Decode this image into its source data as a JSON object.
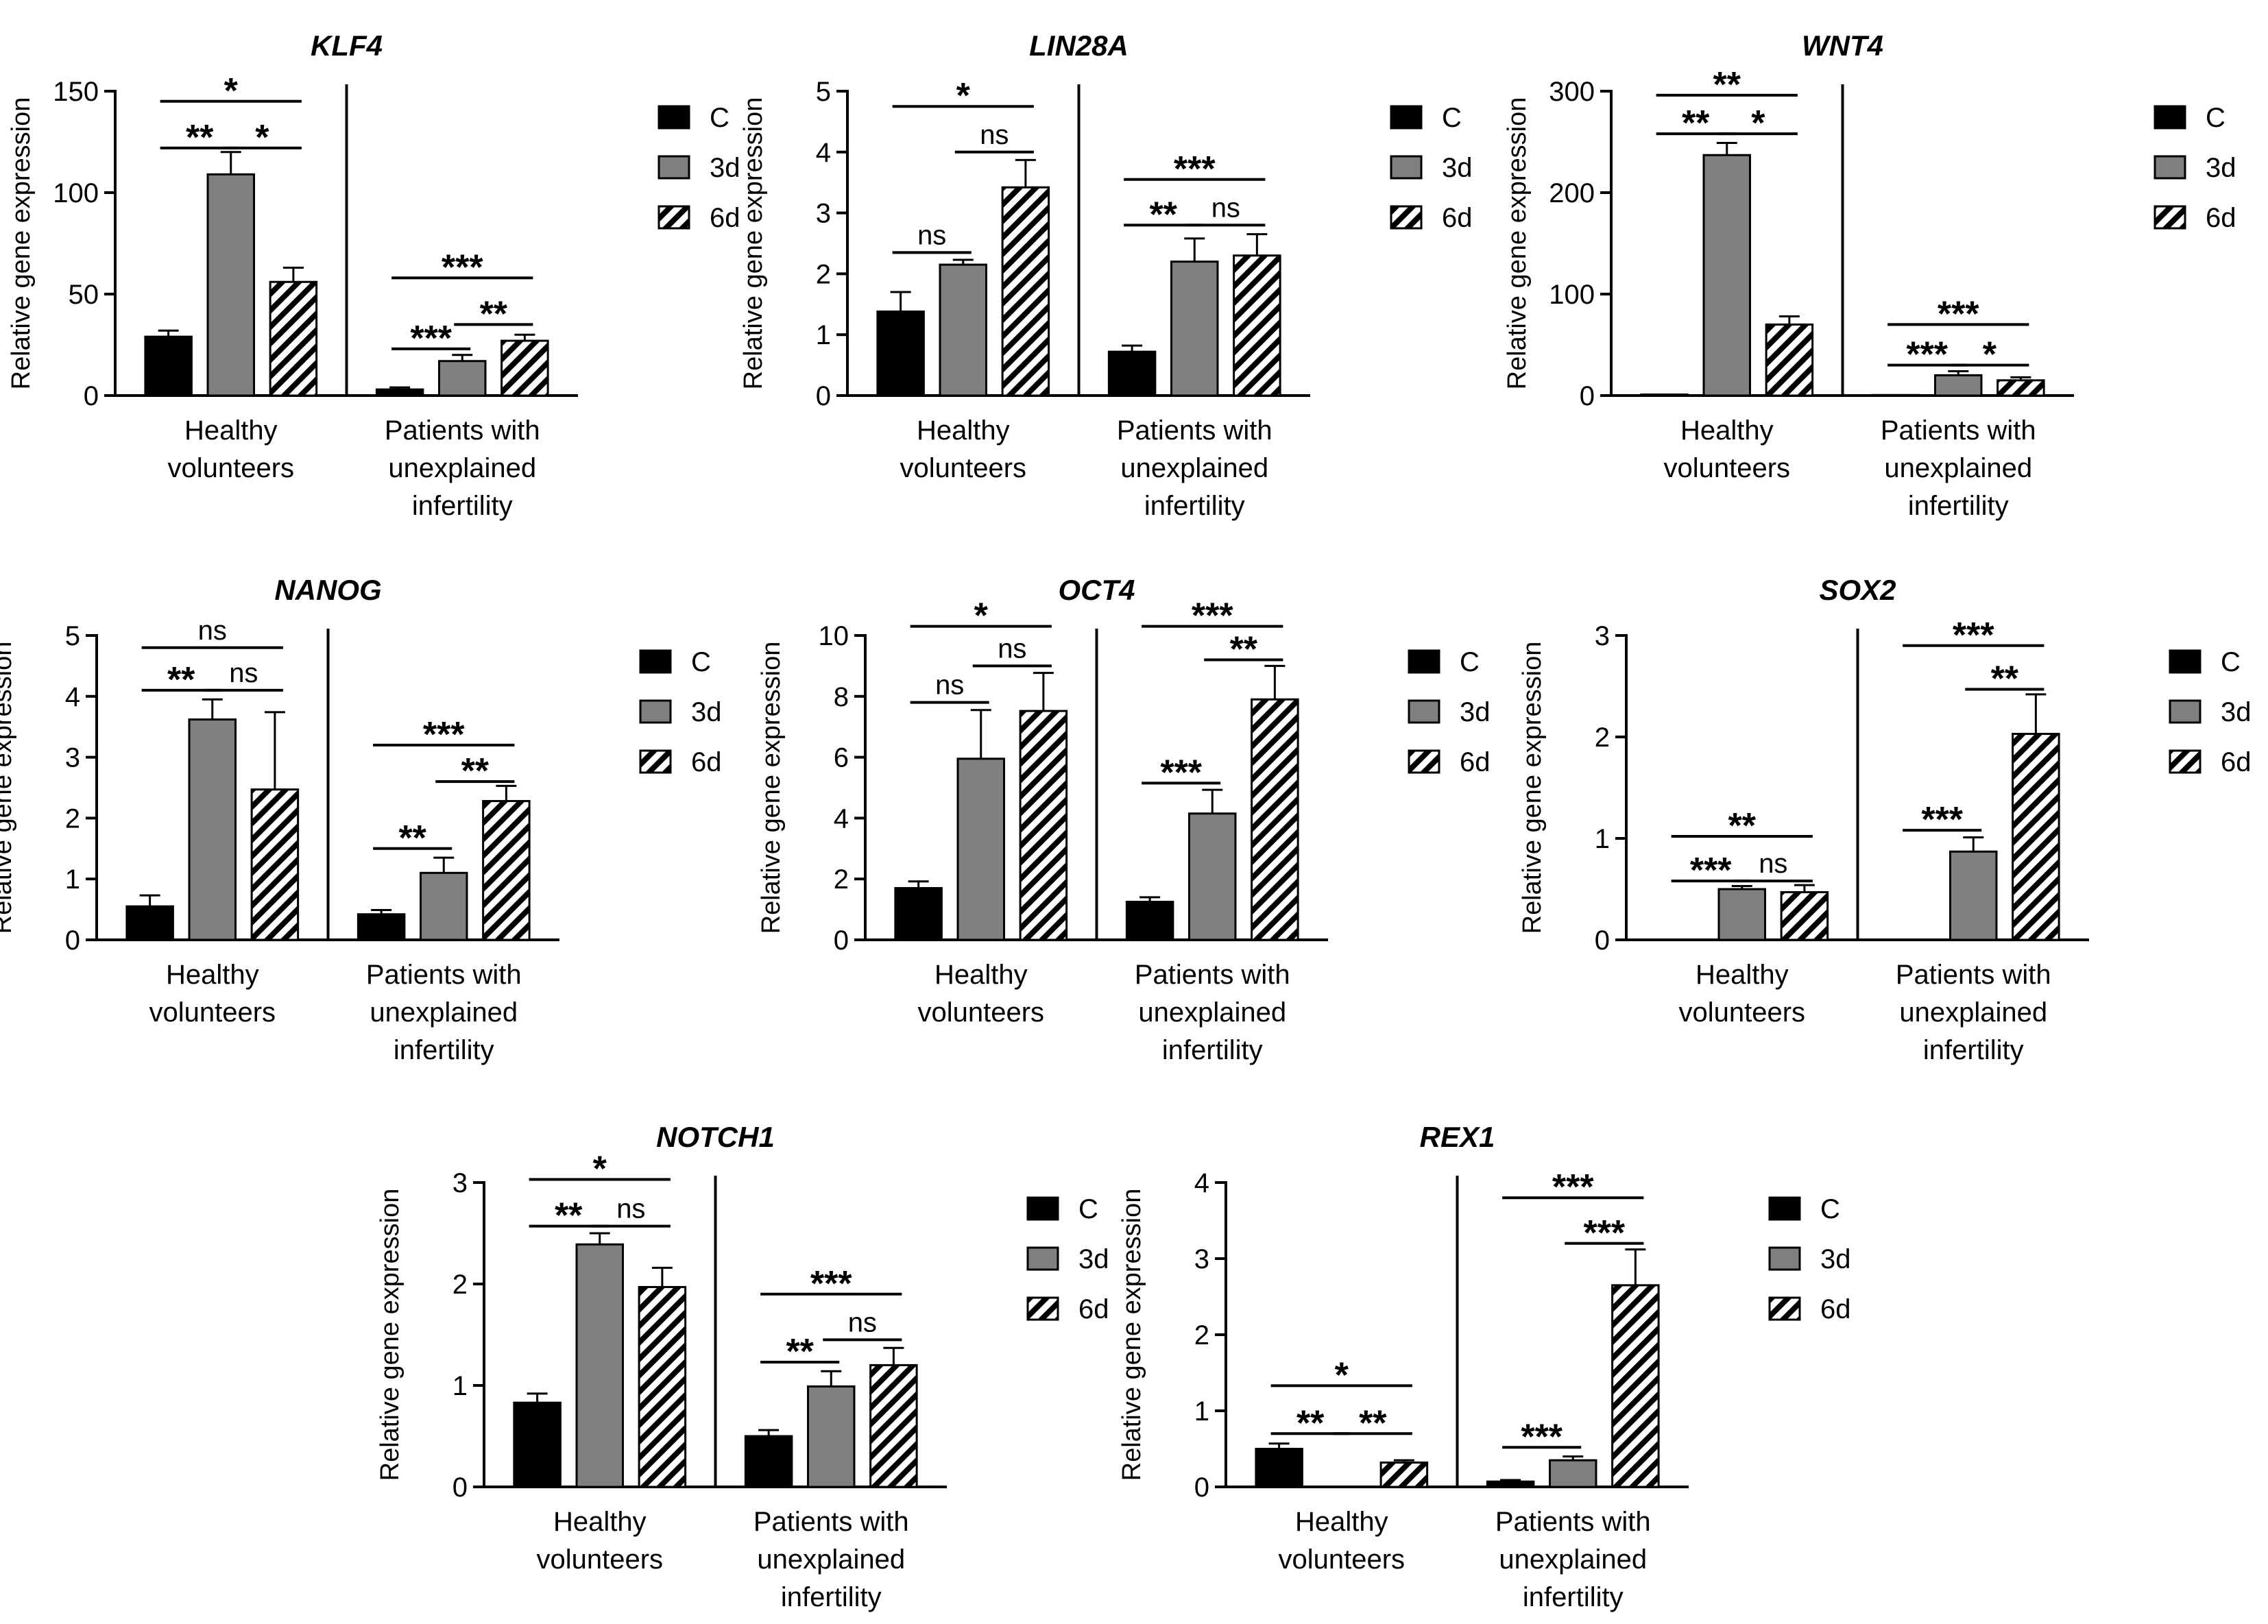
{
  "figure": {
    "ylabel": "Relative gene expression",
    "groups": [
      "Healthy volunteers",
      "Patients with unexplained infertility"
    ],
    "group_label_lines": [
      [
        "Healthy",
        "volunteers"
      ],
      [
        "Patients with",
        "unexplained",
        "infertility"
      ]
    ],
    "legend": [
      {
        "key": "C",
        "label": "C",
        "fill": "#000000"
      },
      {
        "key": "3d",
        "label": "3d",
        "fill": "#808080"
      },
      {
        "key": "6d",
        "label": "6d",
        "fill": "hatch"
      }
    ],
    "colors": {
      "control": "#000000",
      "day3": "#808080",
      "day6_hatch": "#000000",
      "axis": "#000000"
    }
  },
  "chart_data": [
    {
      "type": "bar",
      "title": "KLF4",
      "ylabel": "Relative gene expression",
      "categories": [
        "Healthy volunteers",
        "Patients with unexplained infertility"
      ],
      "ylim": [
        0,
        150
      ],
      "yticks": [
        0,
        50,
        100,
        150
      ],
      "series": [
        {
          "name": "C",
          "values": [
            29,
            3
          ],
          "errors": [
            3,
            1
          ]
        },
        {
          "name": "3d",
          "values": [
            109,
            17
          ],
          "errors": [
            11,
            3
          ]
        },
        {
          "name": "6d",
          "values": [
            56,
            27
          ],
          "errors": [
            7,
            3
          ]
        }
      ],
      "annotations": [
        {
          "group": 0,
          "from": 0,
          "to": 2,
          "y": 145,
          "label": "*"
        },
        {
          "group": 0,
          "from": 0,
          "to": 1,
          "y": 122,
          "label": "**"
        },
        {
          "group": 0,
          "from": 1,
          "to": 2,
          "y": 122,
          "label": "*"
        },
        {
          "group": 1,
          "from": 0,
          "to": 2,
          "y": 58,
          "label": "***"
        },
        {
          "group": 1,
          "from": 0,
          "to": 1,
          "y": 23,
          "label": "***"
        },
        {
          "group": 1,
          "from": 1,
          "to": 2,
          "y": 35,
          "label": "**"
        }
      ]
    },
    {
      "type": "bar",
      "title": "LIN28A",
      "ylabel": "Relative gene expression",
      "categories": [
        "Healthy volunteers",
        "Patients with unexplained infertility"
      ],
      "ylim": [
        0,
        5
      ],
      "yticks": [
        0,
        1,
        2,
        3,
        4,
        5
      ],
      "series": [
        {
          "name": "C",
          "values": [
            1.38,
            0.72
          ],
          "errors": [
            0.32,
            0.1
          ]
        },
        {
          "name": "3d",
          "values": [
            2.15,
            2.2
          ],
          "errors": [
            0.08,
            0.38
          ]
        },
        {
          "name": "6d",
          "values": [
            3.42,
            2.3
          ],
          "errors": [
            0.45,
            0.35
          ]
        }
      ],
      "annotations": [
        {
          "group": 0,
          "from": 0,
          "to": 2,
          "y": 4.75,
          "label": "*"
        },
        {
          "group": 0,
          "from": 0,
          "to": 1,
          "y": 2.35,
          "label": "ns"
        },
        {
          "group": 0,
          "from": 1,
          "to": 2,
          "y": 4.0,
          "label": "ns"
        },
        {
          "group": 1,
          "from": 0,
          "to": 2,
          "y": 3.55,
          "label": "***"
        },
        {
          "group": 1,
          "from": 0,
          "to": 1,
          "y": 2.8,
          "label": "**"
        },
        {
          "group": 1,
          "from": 1,
          "to": 2,
          "y": 2.8,
          "label": "ns"
        }
      ]
    },
    {
      "type": "bar",
      "title": "WNT4",
      "ylabel": "Relative gene expression",
      "categories": [
        "Healthy volunteers",
        "Patients with unexplained infertility"
      ],
      "ylim": [
        0,
        300
      ],
      "yticks": [
        0,
        100,
        200,
        300
      ],
      "series": [
        {
          "name": "C",
          "values": [
            1,
            0.5
          ],
          "errors": [
            0,
            0
          ]
        },
        {
          "name": "3d",
          "values": [
            237,
            20
          ],
          "errors": [
            12,
            4
          ]
        },
        {
          "name": "6d",
          "values": [
            70,
            15
          ],
          "errors": [
            8,
            3
          ]
        }
      ],
      "annotations": [
        {
          "group": 0,
          "from": 0,
          "to": 2,
          "y": 296,
          "label": "**"
        },
        {
          "group": 0,
          "from": 0,
          "to": 1,
          "y": 258,
          "label": "**"
        },
        {
          "group": 0,
          "from": 1,
          "to": 2,
          "y": 258,
          "label": "*"
        },
        {
          "group": 1,
          "from": 0,
          "to": 2,
          "y": 70,
          "label": "***"
        },
        {
          "group": 1,
          "from": 0,
          "to": 1,
          "y": 30,
          "label": "***"
        },
        {
          "group": 1,
          "from": 1,
          "to": 2,
          "y": 30,
          "label": "*"
        }
      ]
    },
    {
      "type": "bar",
      "title": "NANOG",
      "ylabel": "Relative gene expression",
      "categories": [
        "Healthy volunteers",
        "Patients with unexplained infertility"
      ],
      "ylim": [
        0,
        5
      ],
      "yticks": [
        0,
        1,
        2,
        3,
        4,
        5
      ],
      "series": [
        {
          "name": "C",
          "values": [
            0.55,
            0.42
          ],
          "errors": [
            0.18,
            0.07
          ]
        },
        {
          "name": "3d",
          "values": [
            3.62,
            1.1
          ],
          "errors": [
            0.33,
            0.25
          ]
        },
        {
          "name": "6d",
          "values": [
            2.47,
            2.28
          ],
          "errors": [
            1.27,
            0.25
          ]
        }
      ],
      "annotations": [
        {
          "group": 0,
          "from": 0,
          "to": 2,
          "y": 4.8,
          "label": "ns"
        },
        {
          "group": 0,
          "from": 0,
          "to": 1,
          "y": 4.1,
          "label": "**"
        },
        {
          "group": 0,
          "from": 1,
          "to": 2,
          "y": 4.1,
          "label": "ns"
        },
        {
          "group": 1,
          "from": 0,
          "to": 2,
          "y": 3.2,
          "label": "***"
        },
        {
          "group": 1,
          "from": 0,
          "to": 1,
          "y": 1.5,
          "label": "**"
        },
        {
          "group": 1,
          "from": 1,
          "to": 2,
          "y": 2.6,
          "label": "**"
        }
      ]
    },
    {
      "type": "bar",
      "title": "OCT4",
      "ylabel": "Relative gene expression",
      "categories": [
        "Healthy volunteers",
        "Patients with unexplained infertility"
      ],
      "ylim": [
        0,
        10
      ],
      "yticks": [
        0,
        2,
        4,
        6,
        8,
        10
      ],
      "series": [
        {
          "name": "C",
          "values": [
            1.7,
            1.25
          ],
          "errors": [
            0.22,
            0.15
          ]
        },
        {
          "name": "3d",
          "values": [
            5.95,
            4.15
          ],
          "errors": [
            1.6,
            0.78
          ]
        },
        {
          "name": "6d",
          "values": [
            7.52,
            7.9
          ],
          "errors": [
            1.25,
            1.1
          ]
        }
      ],
      "annotations": [
        {
          "group": 0,
          "from": 0,
          "to": 2,
          "y": 10.3,
          "label": "*"
        },
        {
          "group": 0,
          "from": 0,
          "to": 1,
          "y": 7.8,
          "label": "ns"
        },
        {
          "group": 0,
          "from": 1,
          "to": 2,
          "y": 9.0,
          "label": "ns"
        },
        {
          "group": 1,
          "from": 0,
          "to": 2,
          "y": 10.3,
          "label": "***"
        },
        {
          "group": 1,
          "from": 0,
          "to": 1,
          "y": 5.15,
          "label": "***"
        },
        {
          "group": 1,
          "from": 1,
          "to": 2,
          "y": 9.2,
          "label": "**"
        }
      ]
    },
    {
      "type": "bar",
      "title": "SOX2",
      "ylabel": "Relative gene expression",
      "categories": [
        "Healthy volunteers",
        "Patients with unexplained infertility"
      ],
      "ylim": [
        0,
        3
      ],
      "yticks": [
        0,
        1,
        2,
        3
      ],
      "series": [
        {
          "name": "C",
          "values": [
            0,
            0
          ],
          "errors": [
            0,
            0
          ]
        },
        {
          "name": "3d",
          "values": [
            0.5,
            0.87
          ],
          "errors": [
            0.03,
            0.14
          ]
        },
        {
          "name": "6d",
          "values": [
            0.47,
            2.03
          ],
          "errors": [
            0.07,
            0.39
          ]
        }
      ],
      "annotations": [
        {
          "group": 0,
          "from": 0,
          "to": 2,
          "y": 1.02,
          "label": "**"
        },
        {
          "group": 0,
          "from": 0,
          "to": 1,
          "y": 0.58,
          "label": "***"
        },
        {
          "group": 0,
          "from": 1,
          "to": 2,
          "y": 0.58,
          "label": "ns"
        },
        {
          "group": 1,
          "from": 0,
          "to": 2,
          "y": 2.9,
          "label": "***"
        },
        {
          "group": 1,
          "from": 0,
          "to": 1,
          "y": 1.08,
          "label": "***"
        },
        {
          "group": 1,
          "from": 1,
          "to": 2,
          "y": 2.47,
          "label": "**"
        }
      ]
    },
    {
      "type": "bar",
      "title": "NOTCH1",
      "ylabel": "Relative gene expression",
      "categories": [
        "Healthy volunteers",
        "Patients with unexplained infertility"
      ],
      "ylim": [
        0,
        3
      ],
      "yticks": [
        0,
        1,
        2,
        3
      ],
      "series": [
        {
          "name": "C",
          "values": [
            0.83,
            0.5
          ],
          "errors": [
            0.09,
            0.06
          ]
        },
        {
          "name": "3d",
          "values": [
            2.39,
            0.99
          ],
          "errors": [
            0.11,
            0.15
          ]
        },
        {
          "name": "6d",
          "values": [
            1.97,
            1.2
          ],
          "errors": [
            0.19,
            0.17
          ]
        }
      ],
      "annotations": [
        {
          "group": 0,
          "from": 0,
          "to": 2,
          "y": 3.03,
          "label": "*"
        },
        {
          "group": 0,
          "from": 0,
          "to": 1,
          "y": 2.57,
          "label": "**"
        },
        {
          "group": 0,
          "from": 1,
          "to": 2,
          "y": 2.57,
          "label": "ns"
        },
        {
          "group": 1,
          "from": 0,
          "to": 2,
          "y": 1.9,
          "label": "***"
        },
        {
          "group": 1,
          "from": 0,
          "to": 1,
          "y": 1.23,
          "label": "**"
        },
        {
          "group": 1,
          "from": 1,
          "to": 2,
          "y": 1.45,
          "label": "ns"
        }
      ]
    },
    {
      "type": "bar",
      "title": "REX1",
      "ylabel": "Relative gene expression",
      "categories": [
        "Healthy volunteers",
        "Patients with unexplained infertility"
      ],
      "ylim": [
        0,
        4
      ],
      "yticks": [
        0,
        1,
        2,
        3,
        4
      ],
      "series": [
        {
          "name": "C",
          "values": [
            0.5,
            0.07
          ],
          "errors": [
            0.07,
            0.02
          ]
        },
        {
          "name": "3d",
          "values": [
            0,
            0.35
          ],
          "errors": [
            0,
            0.05
          ]
        },
        {
          "name": "6d",
          "values": [
            0.32,
            2.65
          ],
          "errors": [
            0.03,
            0.47
          ]
        }
      ],
      "annotations": [
        {
          "group": 0,
          "from": 0,
          "to": 2,
          "y": 1.33,
          "label": "*"
        },
        {
          "group": 0,
          "from": 0,
          "to": 1,
          "y": 0.7,
          "label": "**"
        },
        {
          "group": 0,
          "from": 1,
          "to": 2,
          "y": 0.7,
          "label": "**"
        },
        {
          "group": 1,
          "from": 0,
          "to": 2,
          "y": 3.8,
          "label": "***"
        },
        {
          "group": 1,
          "from": 0,
          "to": 1,
          "y": 0.52,
          "label": "***"
        },
        {
          "group": 1,
          "from": 1,
          "to": 2,
          "y": 3.2,
          "label": "***"
        }
      ]
    }
  ]
}
